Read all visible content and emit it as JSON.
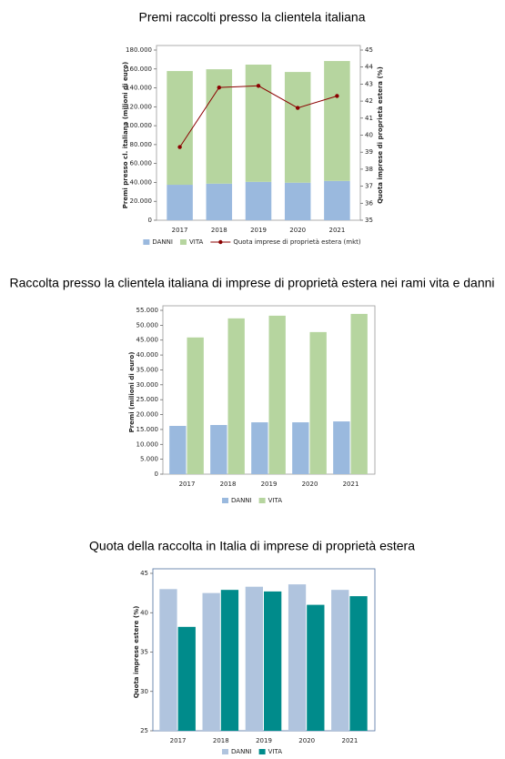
{
  "chart_data": [
    {
      "type": "bar",
      "stacked": true,
      "title": "Premi raccolti presso la clientela italiana",
      "ylabel": "Premi presso cl. italiana (milioni di euro)",
      "y2label": "Quota imprese di proprietà estera (%)",
      "categories": [
        "2017",
        "2018",
        "2019",
        "2020",
        "2021"
      ],
      "series": [
        {
          "name": "DANNI",
          "color": "#9ab9de",
          "values": [
            37500,
            38700,
            40600,
            39700,
            41600
          ]
        },
        {
          "name": "VITA",
          "color": "#b6d59f",
          "values": [
            120300,
            121000,
            124000,
            117100,
            126800
          ]
        },
        {
          "name": "Quota imprese di proprietà estera (mkt)",
          "type": "line",
          "axis": "y2",
          "color": "#8b0000",
          "values": [
            39.3,
            42.8,
            42.9,
            41.6,
            42.3
          ]
        }
      ],
      "ylim": [
        0,
        180000
      ],
      "yticks": [
        {
          "value": 0,
          "label": "0"
        },
        {
          "value": 20000,
          "label": "20.000"
        },
        {
          "value": 40000,
          "label": "40.000"
        },
        {
          "value": 60000,
          "label": "60.000"
        },
        {
          "value": 80000,
          "label": "80.000"
        },
        {
          "value": 100000,
          "label": "100.000"
        },
        {
          "value": 120000,
          "label": "120.000"
        },
        {
          "value": 140000,
          "label": "140.000"
        },
        {
          "value": 160000,
          "label": "160.000"
        },
        {
          "value": 180000,
          "label": "180.000"
        }
      ],
      "y2lim": [
        35,
        45
      ],
      "y2ticks": [
        35,
        36,
        37,
        38,
        39,
        40,
        41,
        42,
        43,
        44,
        45
      ]
    },
    {
      "type": "bar",
      "stacked": false,
      "title": "Raccolta presso la clientela italiana di imprese di proprietà estera nei rami vita e danni",
      "ylabel": "Premi (milioni di euro)",
      "categories": [
        "2017",
        "2018",
        "2019",
        "2020",
        "2021"
      ],
      "series": [
        {
          "name": "DANNI",
          "color": "#9ab9de",
          "values": [
            16200,
            16500,
            17400,
            17400,
            17700
          ]
        },
        {
          "name": "VITA",
          "color": "#b6d59f",
          "values": [
            45900,
            52300,
            53200,
            47700,
            53800
          ]
        }
      ],
      "ylim": [
        0,
        55000
      ],
      "yticks": [
        {
          "value": 0,
          "label": "0"
        },
        {
          "value": 5000,
          "label": "5.000"
        },
        {
          "value": 10000,
          "label": "10.000"
        },
        {
          "value": 15000,
          "label": "15.000"
        },
        {
          "value": 20000,
          "label": "20.000"
        },
        {
          "value": 25000,
          "label": "25.000"
        },
        {
          "value": 30000,
          "label": "30.000"
        },
        {
          "value": 35000,
          "label": "35.000"
        },
        {
          "value": 40000,
          "label": "40.000"
        },
        {
          "value": 45000,
          "label": "45.000"
        },
        {
          "value": 50000,
          "label": "50.000"
        },
        {
          "value": 55000,
          "label": "55.000"
        }
      ]
    },
    {
      "type": "bar",
      "stacked": false,
      "title": "Quota della raccolta in Italia di imprese di proprietà estera",
      "ylabel": "Quota imprese estere (%)",
      "categories": [
        "2017",
        "2018",
        "2019",
        "2020",
        "2021"
      ],
      "series": [
        {
          "name": "DANNI",
          "color": "#b0c4de",
          "values": [
            43.0,
            42.5,
            43.3,
            43.6,
            42.9
          ]
        },
        {
          "name": "VITA",
          "color": "#008b8b",
          "values": [
            38.2,
            42.9,
            42.7,
            41.0,
            42.1
          ]
        }
      ],
      "ylim": [
        25,
        45
      ],
      "yticks": [
        25,
        30,
        35,
        40,
        45
      ]
    }
  ]
}
